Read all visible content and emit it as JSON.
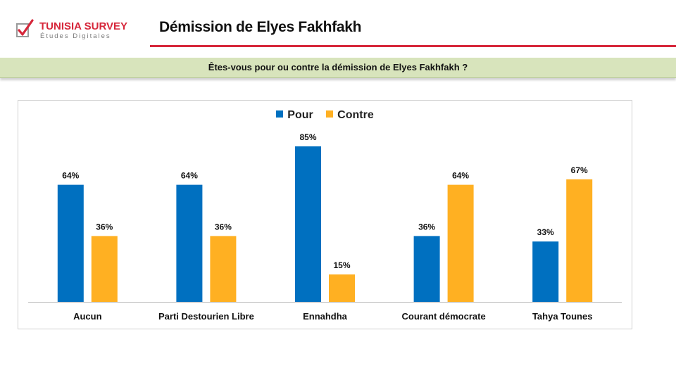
{
  "brand": {
    "name": "TUNISIA SURVEY",
    "tagline": "Études Digitales",
    "accent_color": "#d6263a"
  },
  "header": {
    "title": "Démission de Elyes Fakhfakh"
  },
  "question": {
    "text": "Êtes-vous pour ou contre la démission de Elyes Fakhfakh ?",
    "band_color": "#d8e4bc"
  },
  "chart_data": {
    "type": "bar",
    "categories": [
      "Aucun",
      "Parti Destourien Libre",
      "Ennahdha",
      "Courant démocrate",
      "Tahya Tounes"
    ],
    "series": [
      {
        "name": "Pour",
        "color": "#0070c0",
        "values": [
          64,
          64,
          85,
          36,
          33
        ],
        "labels": [
          "64%",
          "64%",
          "85%",
          "36%",
          "33%"
        ]
      },
      {
        "name": "Contre",
        "color": "#ffb022",
        "values": [
          36,
          36,
          15,
          64,
          67
        ],
        "labels": [
          "36%",
          "36%",
          "15%",
          "64%",
          "67%"
        ]
      }
    ],
    "title": "",
    "xlabel": "",
    "ylabel": "",
    "ylim": [
      0,
      100
    ],
    "grid": false,
    "legend": "top-center"
  }
}
